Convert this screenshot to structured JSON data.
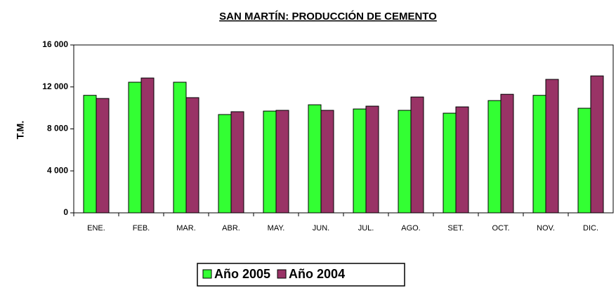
{
  "chart_data": {
    "type": "bar",
    "title": "SAN MARTÍN: PRODUCCIÓN DE CEMENTO",
    "y_label": "T.M.",
    "categories": [
      "ENE.",
      "FEB.",
      "MAR.",
      "ABR.",
      "MAY.",
      "JUN.",
      "JUL.",
      "AGO.",
      "SET.",
      "OCT.",
      "NOV.",
      "DIC."
    ],
    "series": [
      {
        "name": "Año 2005",
        "color": "#33ff33",
        "values": [
          11200,
          12450,
          12450,
          9370,
          9700,
          10300,
          9900,
          9770,
          9500,
          10700,
          11200,
          9970
        ]
      },
      {
        "name": "Año 2004",
        "color": "#993366",
        "values": [
          10900,
          12850,
          10980,
          9640,
          9770,
          9770,
          10170,
          11040,
          10100,
          11300,
          12720,
          13050
        ]
      }
    ],
    "ylim": [
      0,
      16000
    ],
    "yticks": [
      0,
      {
        "value": 4000,
        "label": "4 000"
      },
      {
        "value": 8000,
        "label": "8 000"
      },
      {
        "value": 12000,
        "label": "12 000"
      },
      {
        "value": 16000,
        "label": "16 000"
      }
    ],
    "grid": false,
    "legend": "bottom"
  }
}
